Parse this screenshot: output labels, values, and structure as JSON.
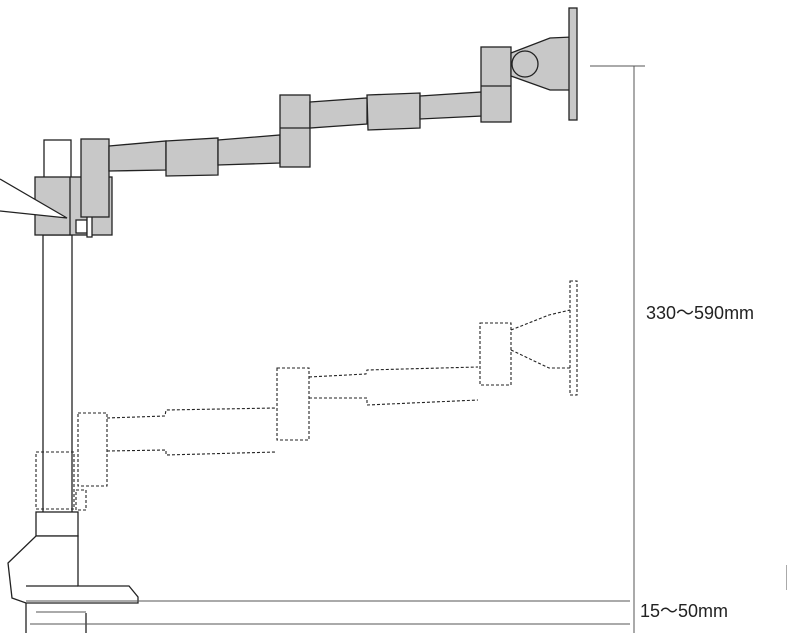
{
  "dimensions": {
    "height_range": "330～590mm",
    "clamp_range": "15～50mm"
  },
  "colors": {
    "arm_fill": "#c8c8c8",
    "outline": "#222222",
    "dim_line": "#555555",
    "background": "#ffffff"
  }
}
